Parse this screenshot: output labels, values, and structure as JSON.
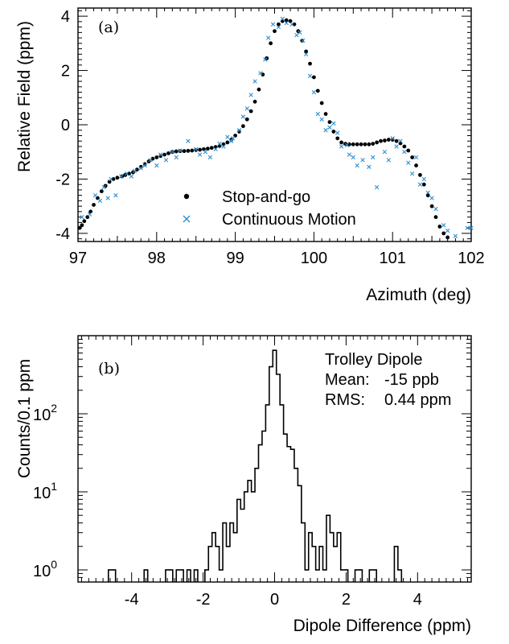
{
  "chart_data": [
    {
      "type": "scatter",
      "panel_label": "(a)",
      "xlabel": "Azimuth (deg)",
      "ylabel": "Relative Field (ppm)",
      "xlim": [
        97,
        102
      ],
      "ylim": [
        -4.3,
        4.3
      ],
      "xticks": [
        97,
        98,
        99,
        100,
        101,
        102
      ],
      "yticks": [
        -4,
        -2,
        0,
        2,
        4
      ],
      "legend_position": "bottom-center",
      "series": [
        {
          "name": "Stop-and-go",
          "marker": "dot",
          "color": "#000000",
          "x": [
            97.02,
            97.05,
            97.08,
            97.12,
            97.16,
            97.2,
            97.25,
            97.3,
            97.35,
            97.4,
            97.45,
            97.5,
            97.56,
            97.6,
            97.65,
            97.7,
            97.75,
            97.8,
            97.85,
            97.9,
            97.95,
            98.0,
            98.05,
            98.1,
            98.15,
            98.2,
            98.25,
            98.3,
            98.35,
            98.4,
            98.45,
            98.5,
            98.55,
            98.6,
            98.65,
            98.7,
            98.75,
            98.8,
            98.85,
            98.9,
            98.95,
            99.0,
            99.05,
            99.1,
            99.15,
            99.2,
            99.25,
            99.3,
            99.35,
            99.4,
            99.45,
            99.5,
            99.55,
            99.6,
            99.65,
            99.7,
            99.75,
            99.8,
            99.85,
            99.9,
            99.95,
            100.0,
            100.05,
            100.1,
            100.15,
            100.2,
            100.25,
            100.3,
            100.35,
            100.4,
            100.45,
            100.5,
            100.55,
            100.6,
            100.65,
            100.7,
            100.75,
            100.8,
            100.85,
            100.9,
            100.95,
            101.0,
            101.05,
            101.1,
            101.15,
            101.2,
            101.25,
            101.3,
            101.35,
            101.4,
            101.45,
            101.5,
            101.55,
            101.6,
            101.65,
            101.7
          ],
          "y": [
            -3.8,
            -3.7,
            -3.55,
            -3.4,
            -3.2,
            -2.95,
            -2.7,
            -2.45,
            -2.25,
            -2.1,
            -2.0,
            -1.95,
            -1.9,
            -1.85,
            -1.8,
            -1.75,
            -1.65,
            -1.55,
            -1.45,
            -1.35,
            -1.25,
            -1.2,
            -1.15,
            -1.1,
            -1.05,
            -1.0,
            -0.98,
            -0.97,
            -0.97,
            -0.96,
            -0.95,
            -0.93,
            -0.92,
            -0.9,
            -0.88,
            -0.85,
            -0.82,
            -0.78,
            -0.72,
            -0.65,
            -0.55,
            -0.4,
            -0.25,
            -0.05,
            0.2,
            0.5,
            0.85,
            1.3,
            1.85,
            2.45,
            3.0,
            3.45,
            3.7,
            3.82,
            3.85,
            3.82,
            3.7,
            3.45,
            3.1,
            2.7,
            2.25,
            1.75,
            1.25,
            0.8,
            0.4,
            0.1,
            -0.25,
            -0.5,
            -0.65,
            -0.7,
            -0.72,
            -0.72,
            -0.72,
            -0.72,
            -0.72,
            -0.72,
            -0.7,
            -0.65,
            -0.6,
            -0.58,
            -0.55,
            -0.55,
            -0.6,
            -0.68,
            -0.8,
            -0.95,
            -1.2,
            -1.5,
            -1.85,
            -2.2,
            -2.6,
            -3.0,
            -3.4,
            -3.75,
            -4.0,
            -4.15
          ]
        },
        {
          "name": "Continuous Motion",
          "marker": "x",
          "color": "#2f8fd0",
          "x": [
            97.05,
            97.15,
            97.22,
            97.28,
            97.33,
            97.38,
            97.42,
            97.48,
            97.55,
            97.62,
            97.68,
            97.72,
            97.8,
            97.85,
            97.92,
            98.0,
            98.05,
            98.12,
            98.2,
            98.25,
            98.3,
            98.4,
            98.5,
            98.55,
            98.62,
            98.68,
            98.75,
            98.8,
            98.85,
            98.9,
            98.95,
            98.97,
            99.05,
            99.1,
            99.15,
            99.2,
            99.25,
            99.32,
            99.38,
            99.42,
            99.48,
            99.55,
            99.6,
            99.65,
            99.72,
            99.78,
            99.82,
            99.86,
            99.9,
            99.95,
            100.0,
            100.05,
            100.1,
            100.15,
            100.2,
            100.25,
            100.3,
            100.35,
            100.42,
            100.45,
            100.5,
            100.55,
            100.62,
            100.7,
            100.75,
            100.8,
            100.9,
            100.95,
            101.0,
            101.05,
            101.1,
            101.15,
            101.2,
            101.25,
            101.3,
            101.35,
            101.4,
            101.45,
            101.5,
            101.55,
            101.65,
            101.7,
            101.8,
            101.95,
            102.0
          ],
          "y": [
            -3.4,
            -3.3,
            -2.6,
            -2.8,
            -2.3,
            -2.7,
            -2.0,
            -2.6,
            -1.9,
            -1.8,
            -1.9,
            -1.7,
            -1.6,
            -1.5,
            -1.3,
            -1.5,
            -1.1,
            -1.3,
            -1.0,
            -1.2,
            -0.95,
            -0.6,
            -0.9,
            -1.1,
            -1.0,
            -1.2,
            -0.9,
            -0.7,
            -0.8,
            -0.45,
            -0.6,
            -0.5,
            -0.2,
            0.3,
            0.6,
            1.1,
            1.6,
            1.9,
            2.4,
            3.2,
            3.7,
            3.6,
            3.9,
            3.75,
            3.7,
            3.3,
            3.4,
            3.1,
            2.6,
            1.8,
            1.2,
            0.4,
            0.2,
            -0.2,
            -0.1,
            0.05,
            -0.3,
            -0.8,
            -0.75,
            -1.1,
            -1.2,
            -1.5,
            -1.3,
            -1.55,
            -1.2,
            -2.3,
            -1.0,
            -1.3,
            -0.5,
            -0.8,
            -0.6,
            -1.0,
            -1.4,
            -1.8,
            -1.2,
            -2.2,
            -2.0,
            -2.5,
            -2.7,
            -3.1,
            -3.7,
            -3.9,
            -4.1,
            -3.8,
            -3.8
          ]
        }
      ]
    },
    {
      "type": "histogram",
      "panel_label": "(b)",
      "xlabel": "Dipole Difference (ppm)",
      "ylabel": "Counts/0.1 ppm",
      "xlim": [
        -5.5,
        5.5
      ],
      "ylim_log": [
        0.7,
        1000
      ],
      "y_scale": "log",
      "xticks": [
        -4,
        -2,
        0,
        2,
        4
      ],
      "yticks": [
        "10^0",
        "10^1",
        "10^2"
      ],
      "stats_box": {
        "title": "Trolley Dipole",
        "mean_label": "Mean:",
        "mean_value": "-15 ppb",
        "rms_label": "RMS:",
        "rms_value": "0.44 ppm"
      },
      "bin_width": 0.1,
      "bins": [
        {
          "x": -4.6,
          "count": 1
        },
        {
          "x": -4.5,
          "count": 1
        },
        {
          "x": -3.6,
          "count": 1
        },
        {
          "x": -3.0,
          "count": 1
        },
        {
          "x": -2.9,
          "count": 1
        },
        {
          "x": -2.7,
          "count": 1
        },
        {
          "x": -2.6,
          "count": 1
        },
        {
          "x": -2.4,
          "count": 1
        },
        {
          "x": -2.2,
          "count": 1
        },
        {
          "x": -1.9,
          "count": 1
        },
        {
          "x": -1.8,
          "count": 2
        },
        {
          "x": -1.7,
          "count": 3
        },
        {
          "x": -1.6,
          "count": 2
        },
        {
          "x": -1.5,
          "count": 1
        },
        {
          "x": -1.4,
          "count": 4
        },
        {
          "x": -1.3,
          "count": 2
        },
        {
          "x": -1.2,
          "count": 4
        },
        {
          "x": -1.1,
          "count": 3
        },
        {
          "x": -1.0,
          "count": 8
        },
        {
          "x": -0.9,
          "count": 6
        },
        {
          "x": -0.8,
          "count": 10
        },
        {
          "x": -0.7,
          "count": 14
        },
        {
          "x": -0.6,
          "count": 10
        },
        {
          "x": -0.5,
          "count": 20
        },
        {
          "x": -0.4,
          "count": 40
        },
        {
          "x": -0.3,
          "count": 60
        },
        {
          "x": -0.2,
          "count": 130
        },
        {
          "x": -0.1,
          "count": 400
        },
        {
          "x": 0.0,
          "count": 650
        },
        {
          "x": 0.1,
          "count": 320
        },
        {
          "x": 0.2,
          "count": 130
        },
        {
          "x": 0.3,
          "count": 55
        },
        {
          "x": 0.4,
          "count": 38
        },
        {
          "x": 0.5,
          "count": 35
        },
        {
          "x": 0.6,
          "count": 20
        },
        {
          "x": 0.7,
          "count": 12
        },
        {
          "x": 0.8,
          "count": 4
        },
        {
          "x": 0.9,
          "count": 1
        },
        {
          "x": 1.0,
          "count": 3
        },
        {
          "x": 1.1,
          "count": 2
        },
        {
          "x": 1.2,
          "count": 1
        },
        {
          "x": 1.3,
          "count": 2
        },
        {
          "x": 1.4,
          "count": 1
        },
        {
          "x": 1.5,
          "count": 5
        },
        {
          "x": 1.6,
          "count": 3
        },
        {
          "x": 1.7,
          "count": 2
        },
        {
          "x": 1.8,
          "count": 3
        },
        {
          "x": 1.9,
          "count": 1
        },
        {
          "x": 2.0,
          "count": 1
        },
        {
          "x": 2.3,
          "count": 1
        },
        {
          "x": 2.4,
          "count": 1
        },
        {
          "x": 2.7,
          "count": 1
        },
        {
          "x": 2.8,
          "count": 1
        },
        {
          "x": 3.4,
          "count": 2
        },
        {
          "x": 3.5,
          "count": 1
        }
      ]
    }
  ]
}
